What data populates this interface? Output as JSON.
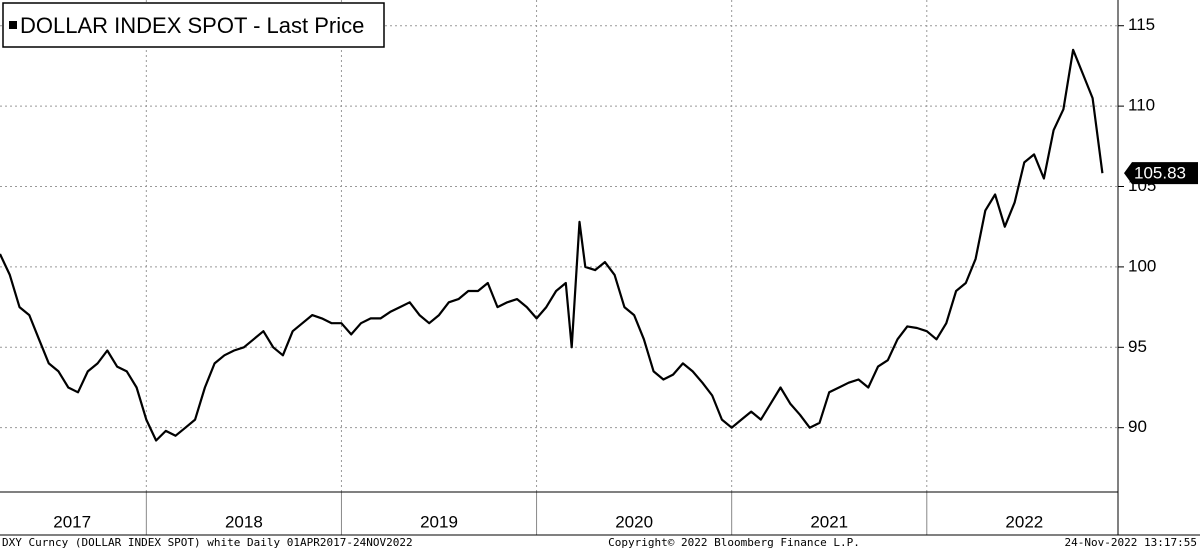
{
  "chart_data": {
    "type": "line",
    "series": [
      {
        "name": "DOLLAR INDEX SPOT - Last Price",
        "color": "#000000",
        "x": [
          2017.25,
          2017.3,
          2017.35,
          2017.4,
          2017.45,
          2017.5,
          2017.55,
          2017.6,
          2017.65,
          2017.7,
          2017.75,
          2017.8,
          2017.85,
          2017.9,
          2017.95,
          2018.0,
          2018.05,
          2018.1,
          2018.15,
          2018.2,
          2018.25,
          2018.3,
          2018.35,
          2018.4,
          2018.45,
          2018.5,
          2018.55,
          2018.6,
          2018.65,
          2018.7,
          2018.75,
          2018.8,
          2018.85,
          2018.9,
          2018.95,
          2019.0,
          2019.05,
          2019.1,
          2019.15,
          2019.2,
          2019.25,
          2019.3,
          2019.35,
          2019.4,
          2019.45,
          2019.5,
          2019.55,
          2019.6,
          2019.65,
          2019.7,
          2019.75,
          2019.8,
          2019.85,
          2019.9,
          2019.95,
          2020.0,
          2020.05,
          2020.1,
          2020.15,
          2020.18,
          2020.22,
          2020.25,
          2020.3,
          2020.35,
          2020.4,
          2020.45,
          2020.5,
          2020.55,
          2020.6,
          2020.65,
          2020.7,
          2020.75,
          2020.8,
          2020.85,
          2020.9,
          2020.95,
          2021.0,
          2021.05,
          2021.1,
          2021.15,
          2021.2,
          2021.25,
          2021.3,
          2021.35,
          2021.4,
          2021.45,
          2021.5,
          2021.55,
          2021.6,
          2021.65,
          2021.7,
          2021.75,
          2021.8,
          2021.85,
          2021.9,
          2021.95,
          2022.0,
          2022.05,
          2022.1,
          2022.15,
          2022.2,
          2022.25,
          2022.3,
          2022.35,
          2022.4,
          2022.45,
          2022.5,
          2022.55,
          2022.6,
          2022.65,
          2022.7,
          2022.75,
          2022.8,
          2022.85,
          2022.9
        ],
        "values": [
          100.8,
          99.5,
          97.5,
          97.0,
          95.5,
          94.0,
          93.5,
          92.5,
          92.2,
          93.5,
          94.0,
          94.8,
          93.8,
          93.5,
          92.5,
          90.5,
          89.2,
          89.8,
          89.5,
          90.0,
          90.5,
          92.5,
          94.0,
          94.5,
          94.8,
          95.0,
          95.5,
          96.0,
          95.0,
          94.5,
          96.0,
          96.5,
          97.0,
          96.8,
          96.5,
          96.5,
          95.8,
          96.5,
          96.8,
          96.8,
          97.2,
          97.5,
          97.8,
          97.0,
          96.5,
          97.0,
          97.8,
          98.0,
          98.5,
          98.5,
          99.0,
          97.5,
          97.8,
          98.0,
          97.5,
          96.8,
          97.5,
          98.5,
          99.0,
          95.0,
          102.8,
          100.0,
          99.8,
          100.3,
          99.5,
          97.5,
          97.0,
          95.5,
          93.5,
          93.0,
          93.3,
          94.0,
          93.5,
          92.8,
          92.0,
          90.5,
          90.0,
          90.5,
          91.0,
          90.5,
          91.5,
          92.5,
          91.5,
          90.8,
          90.0,
          90.3,
          92.2,
          92.5,
          92.8,
          93.0,
          92.5,
          93.8,
          94.2,
          95.5,
          96.3,
          96.2,
          96.0,
          95.5,
          96.5,
          98.5,
          99.0,
          100.5,
          103.5,
          104.5,
          102.5,
          104.0,
          106.5,
          107.0,
          105.5,
          108.5,
          109.8,
          113.5,
          112.0,
          110.5,
          105.83
        ]
      }
    ],
    "xlim": [
      2017.25,
      2022.98
    ],
    "xticks": [
      {
        "value": 2017.62,
        "label": "2017"
      },
      {
        "value": 2018.5,
        "label": "2018"
      },
      {
        "value": 2019.5,
        "label": "2019"
      },
      {
        "value": 2020.5,
        "label": "2020"
      },
      {
        "value": 2021.5,
        "label": "2021"
      },
      {
        "value": 2022.5,
        "label": "2022"
      }
    ],
    "ylim": [
      86,
      116.6
    ],
    "yticks": [
      90,
      95,
      100,
      105,
      110,
      115
    ],
    "grid": true,
    "footer": {
      "left": "DXY Curncy (DOLLAR INDEX SPOT) white  Daily 01APR2017-24NOV2022",
      "center": "Copyright© 2022 Bloomberg Finance L.P.",
      "right": "24-Nov-2022 13:17:55"
    }
  }
}
